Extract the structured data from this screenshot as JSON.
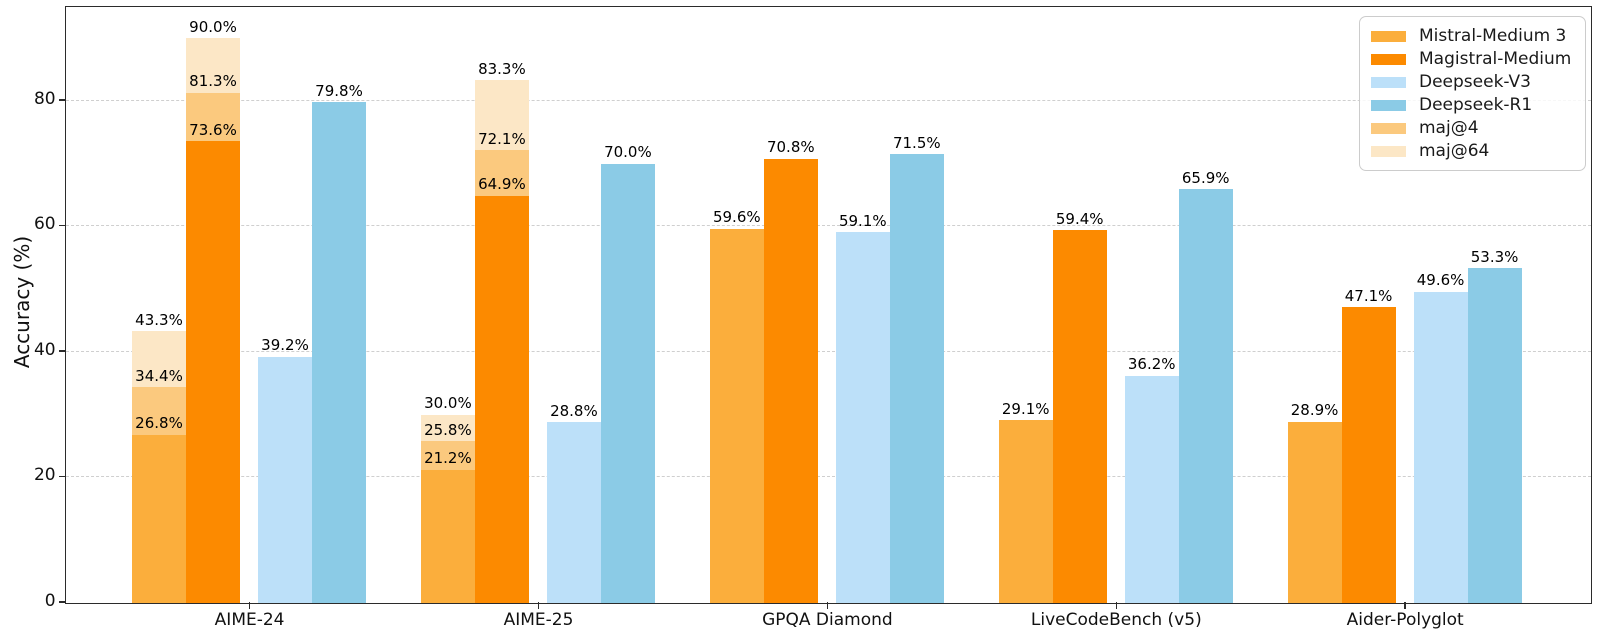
{
  "chart_data": {
    "type": "bar",
    "title": "",
    "xlabel": "",
    "ylabel": "Accuracy (%)",
    "ylim": [
      0,
      94.7
    ],
    "yticks": [
      0,
      20,
      40,
      60,
      80
    ],
    "grid": "horizontal-dashed",
    "legend_position": "upper-right",
    "categories": [
      "AIME-24",
      "AIME-25",
      "GPQA Diamond",
      "LiveCodeBench (v5)",
      "Aider-Polyglot"
    ],
    "series": [
      {
        "name": "Mistral-Medium 3",
        "color": "#FBAE3C",
        "values": [
          26.8,
          21.2,
          59.6,
          29.1,
          28.9
        ],
        "labels": [
          "26.8%",
          "21.2%",
          "59.6%",
          "29.1%",
          "28.9%"
        ]
      },
      {
        "name": "Magistral-Medium",
        "color": "#FC8A00",
        "values": [
          73.6,
          64.9,
          70.8,
          59.4,
          47.1
        ],
        "labels": [
          "73.6%",
          "64.9%",
          "70.8%",
          "59.4%",
          "47.1%"
        ]
      },
      {
        "name": "Deepseek-V3",
        "color": "#BCE0F9",
        "values": [
          39.2,
          28.8,
          59.1,
          36.2,
          49.6
        ],
        "labels": [
          "39.2%",
          "28.8%",
          "59.1%",
          "36.2%",
          "49.6%"
        ]
      },
      {
        "name": "Deepseek-R1",
        "color": "#8BCBE6",
        "values": [
          79.8,
          70.0,
          71.5,
          65.9,
          53.3
        ],
        "labels": [
          "79.8%",
          "70.0%",
          "71.5%",
          "65.9%",
          "53.3%"
        ]
      }
    ],
    "overlays": [
      {
        "name": "maj@4",
        "color": "#FBC97E",
        "applies_to_series": [
          0,
          1
        ],
        "values_by_category": {
          "AIME-24": [
            34.4,
            81.3
          ],
          "AIME-25": [
            25.8,
            72.1
          ]
        },
        "labels_by_category": {
          "AIME-24": [
            "34.4%",
            "81.3%"
          ],
          "AIME-25": [
            "25.8%",
            "72.1%"
          ]
        }
      },
      {
        "name": "maj@64",
        "color": "#FCE7C6",
        "applies_to_series": [
          0,
          1
        ],
        "values_by_category": {
          "AIME-24": [
            43.3,
            90.0
          ],
          "AIME-25": [
            30.0,
            83.3
          ]
        },
        "labels_by_category": {
          "AIME-24": [
            "43.3%",
            "90.0%"
          ],
          "AIME-25": [
            "30.0%",
            "83.3%"
          ]
        }
      }
    ],
    "legend": [
      {
        "label": "Mistral-Medium 3",
        "color": "#FBAE3C"
      },
      {
        "label": "Magistral-Medium",
        "color": "#FC8A00"
      },
      {
        "label": "Deepseek-V3",
        "color": "#BCE0F9"
      },
      {
        "label": "Deepseek-R1",
        "color": "#8BCBE6"
      },
      {
        "label": "maj@4",
        "color": "#FBC97E"
      },
      {
        "label": "maj@64",
        "color": "#FCE7C6"
      }
    ]
  }
}
